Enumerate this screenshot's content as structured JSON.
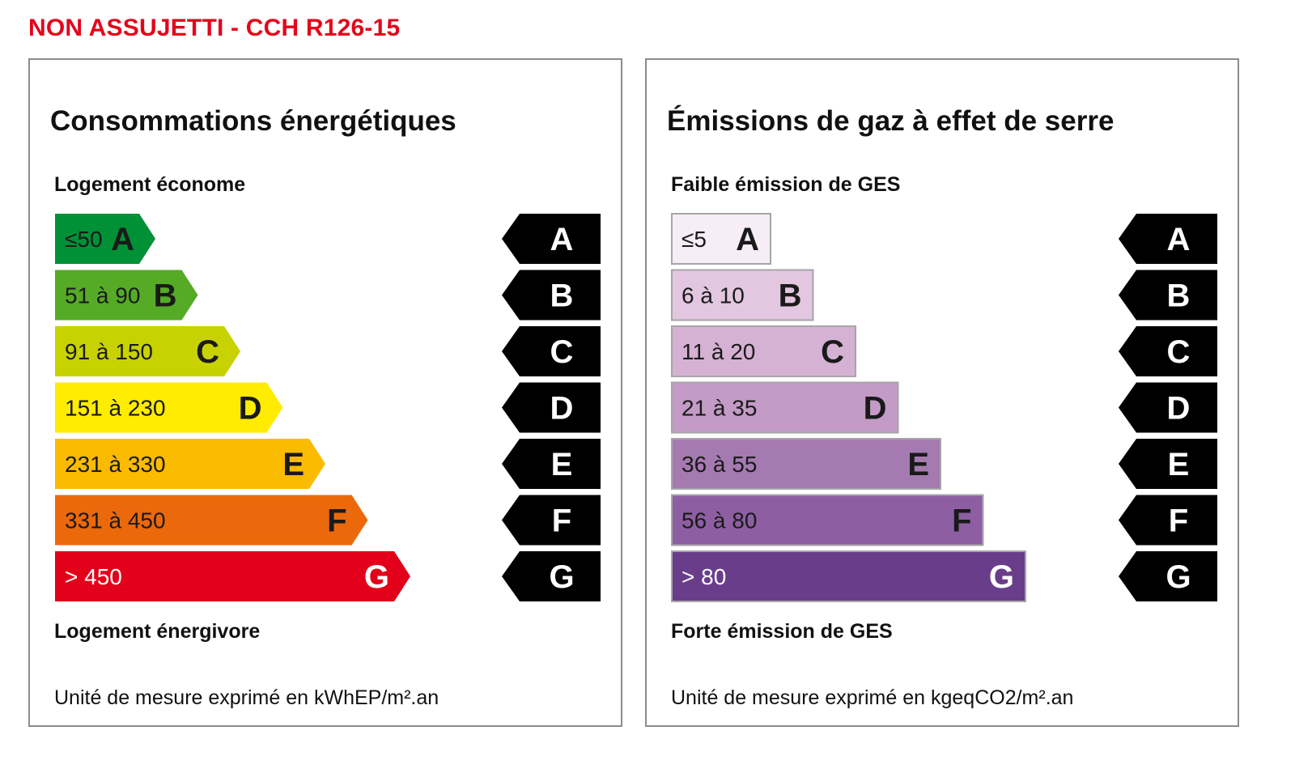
{
  "status_text": "NON ASSUJETTI - CCH R126-15",
  "energy": {
    "title": "Consommations énergétiques",
    "top_label": "Logement économe",
    "bottom_label": "Logement énergivore",
    "unit": "Unité de mesure exprimé en kWhEP/m².an",
    "classes": [
      {
        "letter": "A",
        "range": "≤50",
        "color": "#009036",
        "text_color": "#1a1a1a"
      },
      {
        "letter": "B",
        "range": "51 à 90",
        "color": "#55ab26",
        "text_color": "#1a1a1a"
      },
      {
        "letter": "C",
        "range": "91 à 150",
        "color": "#c8d200",
        "text_color": "#1a1a1a"
      },
      {
        "letter": "D",
        "range": "151 à 230",
        "color": "#ffec00",
        "text_color": "#1a1a1a"
      },
      {
        "letter": "E",
        "range": "231 à 330",
        "color": "#fbbb00",
        "text_color": "#1a1a1a"
      },
      {
        "letter": "F",
        "range": "331 à 450",
        "color": "#eb690b",
        "text_color": "#1a1a1a"
      },
      {
        "letter": "G",
        "range": "> 450",
        "color": "#e2001a",
        "text_color": "#ffffff"
      }
    ],
    "indicator_letters": [
      "A",
      "B",
      "C",
      "D",
      "E",
      "F",
      "G"
    ]
  },
  "ges": {
    "title": "Émissions de gaz à effet de serre",
    "top_label": "Faible émission de GES",
    "bottom_label": "Forte émission de GES",
    "unit": "Unité de mesure exprimé en kgeqCO2/m².an",
    "classes": [
      {
        "letter": "A",
        "range": "≤5",
        "color": "#f6edf6",
        "text_color": "#1a1a1a"
      },
      {
        "letter": "B",
        "range": "6 à 10",
        "color": "#e3c7e0",
        "text_color": "#1a1a1a"
      },
      {
        "letter": "C",
        "range": "11 à 20",
        "color": "#d5b1d3",
        "text_color": "#1a1a1a"
      },
      {
        "letter": "D",
        "range": "21 à 35",
        "color": "#c39bc6",
        "text_color": "#1a1a1a"
      },
      {
        "letter": "E",
        "range": "36 à 55",
        "color": "#a57ab1",
        "text_color": "#1a1a1a"
      },
      {
        "letter": "F",
        "range": "56 à 80",
        "color": "#8d5fa2",
        "text_color": "#1a1a1a"
      },
      {
        "letter": "G",
        "range": "> 80",
        "color": "#6a3d8b",
        "text_color": "#ffffff"
      }
    ],
    "indicator_letters": [
      "A",
      "B",
      "C",
      "D",
      "E",
      "F",
      "G"
    ]
  },
  "colors": {
    "status": "#e3051b",
    "indicator": "#000000",
    "panel_border": "#8c8c8c"
  }
}
